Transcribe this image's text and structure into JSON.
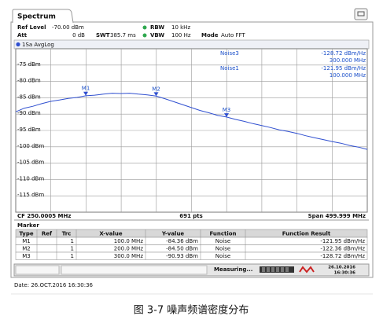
{
  "tab": "Spectrum",
  "settings": {
    "ref_level_label": "Ref Level",
    "ref_level": "-70.00 dBm",
    "att_label": "Att",
    "att": "0 dB",
    "swt_label": "SWT",
    "swt": "385.7 ms",
    "rbw_label": "RBW",
    "rbw": "10 kHz",
    "vbw_label": "VBW",
    "vbw": "100 Hz",
    "mode_label": "Mode",
    "mode": "Auto FFT"
  },
  "chart_data": {
    "type": "line",
    "xlim": [
      0.5,
      500
    ],
    "ylim": [
      -120,
      -70
    ],
    "yticks": [
      {
        "value": -75,
        "label": "-75 dBm"
      },
      {
        "value": -80,
        "label": "-80 dBm"
      },
      {
        "value": -85,
        "label": "-85 dBm"
      },
      {
        "value": -90,
        "label": "-90 dBm"
      },
      {
        "value": -95,
        "label": "-95 dBm"
      },
      {
        "value": -100,
        "label": "-100 dBm"
      },
      {
        "value": -105,
        "label": "-105 dBm"
      },
      {
        "value": -110,
        "label": "-110 dBm"
      },
      {
        "value": -115,
        "label": "-115 dBm"
      }
    ],
    "grid": true,
    "series": [
      {
        "name": "1Sa AvgLog",
        "color": "#2f4fd0",
        "x": [
          0.5,
          12.5,
          25,
          37.5,
          50,
          62.5,
          75,
          87.5,
          100,
          112.5,
          125,
          137.5,
          150,
          162.5,
          175,
          187.5,
          200,
          212.5,
          225,
          237.5,
          250,
          262.5,
          275,
          287.5,
          300,
          312.5,
          325,
          337.5,
          350,
          362.5,
          375,
          387.5,
          400,
          412.5,
          425,
          437.5,
          450,
          462.5,
          475,
          487.5,
          500
        ],
        "values": [
          -89.3,
          -88.2,
          -87.6,
          -86.8,
          -86.1,
          -85.7,
          -85.2,
          -84.9,
          -84.4,
          -84.2,
          -83.9,
          -83.6,
          -83.7,
          -83.6,
          -83.9,
          -84.1,
          -84.5,
          -85.3,
          -86.2,
          -87.1,
          -88.0,
          -88.9,
          -89.6,
          -90.4,
          -90.9,
          -91.6,
          -92.2,
          -92.9,
          -93.5,
          -94.1,
          -94.8,
          -95.3,
          -95.9,
          -96.6,
          -97.2,
          -97.8,
          -98.4,
          -98.9,
          -99.6,
          -100.1,
          -100.8
        ]
      }
    ],
    "markers": [
      {
        "label": "M1",
        "x": 100,
        "y": -84.36
      },
      {
        "label": "M2",
        "x": 200,
        "y": -84.5
      },
      {
        "label": "M3",
        "x": 300,
        "y": -90.93
      }
    ],
    "annotations": [
      {
        "name": "Noise3",
        "value": "-128.72 dBm/Hz",
        "freq": "300.000 MHz"
      },
      {
        "name": "Noise1",
        "value": "-121.95 dBm/Hz",
        "freq": "100.000 MHz"
      }
    ]
  },
  "footer": {
    "cf": "CF 250.0005 MHz",
    "pts": "691 pts",
    "span": "Span 499.999 MHz"
  },
  "marker_table": {
    "title": "Marker",
    "header": [
      "Type",
      "Ref",
      "Trc",
      "X-value",
      "Y-value",
      "Function",
      "Function Result"
    ],
    "rows": [
      {
        "type": "M1",
        "trc": "1",
        "x": "100.0 MHz",
        "y": "-84.36 dBm",
        "function": "Noise",
        "result": "-121.95 dBm/Hz"
      },
      {
        "type": "M2",
        "trc": "1",
        "x": "200.0 MHz",
        "y": "-84.50 dBm",
        "function": "Noise",
        "result": "-122.36 dBm/Hz"
      },
      {
        "type": "M3",
        "trc": "1",
        "x": "300.0 MHz",
        "y": "-90.93 dBm",
        "function": "Noise",
        "result": "-128.72 dBm/Hz"
      }
    ]
  },
  "status": {
    "state": "Measuring...",
    "date": "26.10.2016",
    "time": "16:30:36"
  },
  "date_line": "Date: 26.OCT.2016 16:30:36",
  "caption": "图 3-7 噪声频谱密度分布"
}
